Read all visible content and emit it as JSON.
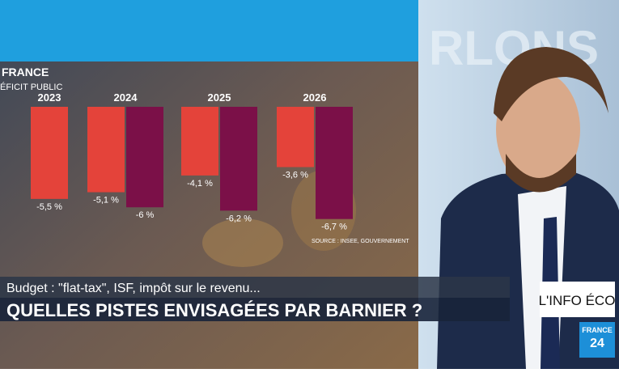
{
  "chart_data": {
    "type": "bar",
    "title": "FRANCE",
    "subtitle": "ÉFICIT PUBLIC",
    "categories": [
      "2023",
      "2024",
      "2025",
      "2026"
    ],
    "series": [
      {
        "color": "#e4433a",
        "values": [
          -5.5,
          -5.1,
          -4.1,
          -3.6
        ],
        "value_labels": [
          "-5,5 %",
          "-5,1 %",
          "-4,1 %",
          "-3,6 %"
        ]
      },
      {
        "color": "#7b1048",
        "values": [
          null,
          -6,
          -6.2,
          -6.7
        ],
        "value_labels": [
          null,
          "-6 %",
          "-6,2 %",
          "-6,7 %"
        ]
      }
    ],
    "source": "SOURCE : INSEE, GOUVERNEMENT"
  },
  "banner": {
    "kicker": "Budget : \"flat-tax\", ISF, impôt sur le revenu...",
    "headline": "QUELLES PISTES ENVISAGÉES PAR BARNIER ?",
    "segment": "L'INFO ÉCO",
    "channel": "FRANCE",
    "channel_number": "24"
  }
}
